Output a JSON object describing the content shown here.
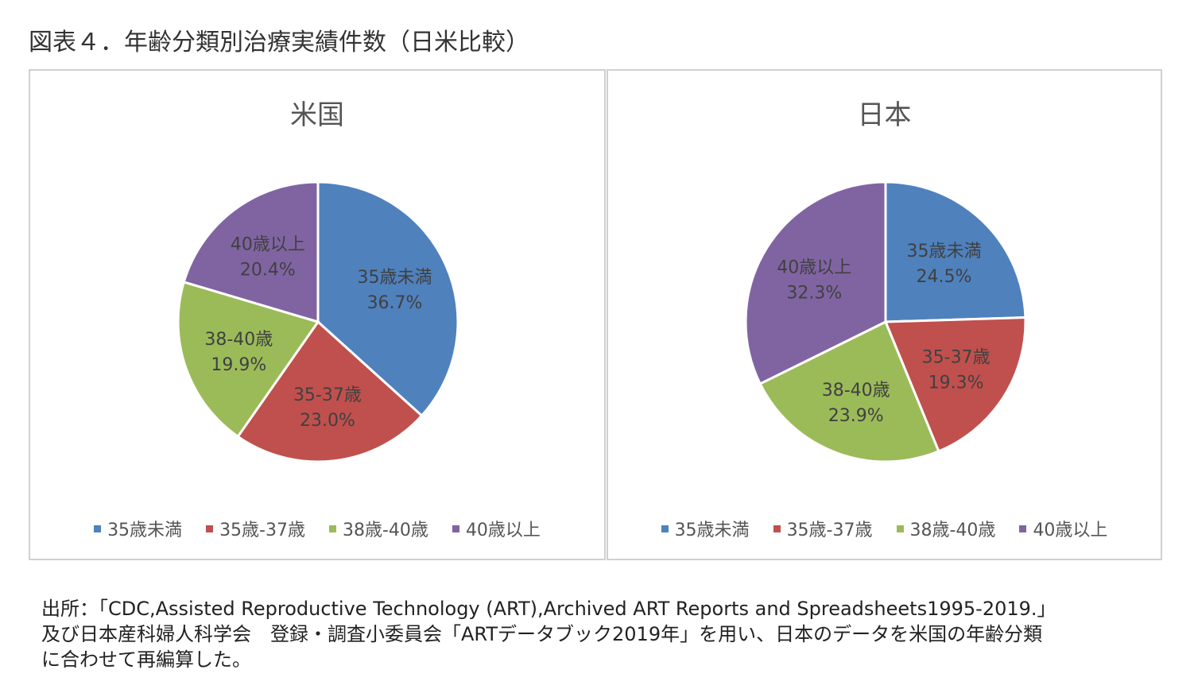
{
  "figure_title": "図表４．年齢分類別治療実績件数（日米比較）",
  "colors": {
    "under35": "#4f81bd",
    "35to37": "#c0504d",
    "38to40": "#9bbb59",
    "over40": "#8064a2"
  },
  "chart_data": [
    {
      "type": "pie",
      "title": "米国",
      "categories": [
        "35歳未満",
        "35歳-37歳",
        "38歳-40歳",
        "40歳以上"
      ],
      "slice_labels": [
        "35歳未満",
        "35-37歳",
        "38-40歳",
        "40歳以上"
      ],
      "values": [
        36.7,
        23.0,
        19.9,
        20.4
      ],
      "value_labels": [
        "36.7%",
        "23.0%",
        "19.9%",
        "20.4%"
      ],
      "legend": "bottom"
    },
    {
      "type": "pie",
      "title": "日本",
      "categories": [
        "35歳未満",
        "35歳-37歳",
        "38歳-40歳",
        "40歳以上"
      ],
      "slice_labels": [
        "35歳未満",
        "35-37歳",
        "38-40歳",
        "40歳以上"
      ],
      "values": [
        24.5,
        19.3,
        23.9,
        32.3
      ],
      "value_labels": [
        "24.5%",
        "19.3%",
        "23.9%",
        "32.3%"
      ],
      "legend": "bottom"
    }
  ],
  "source": {
    "line1": "出所：「CDC,Assisted Reproductive Technology (ART),Archived ART Reports and Spreadsheets1995-2019.」",
    "line2": "及び日本産科婦人科学会　登録・調査小委員会「ARTデータブック2019年」を用い、日本のデータを米国の年齢分類",
    "line3": "に合わせて再編算した。"
  }
}
